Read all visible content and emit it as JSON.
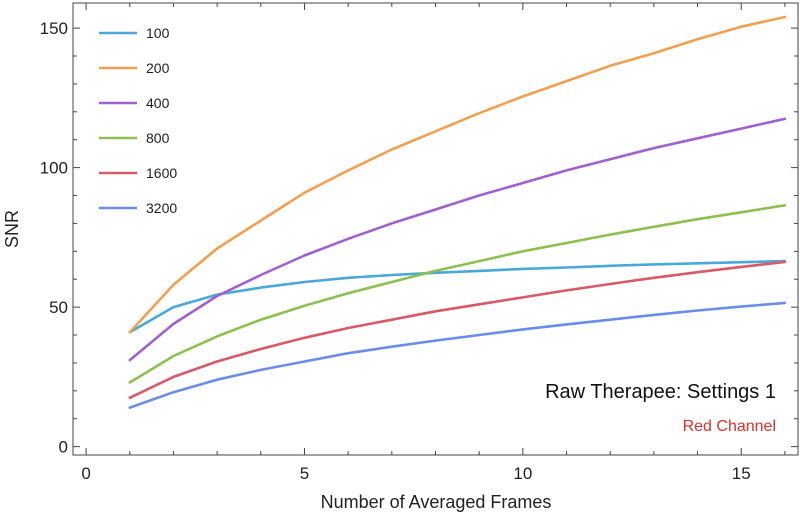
{
  "chart_data": {
    "type": "line",
    "xlabel": "Number of Averaged Frames",
    "ylabel": "SNR",
    "xlim": [
      -0.3,
      16.3
    ],
    "ylim": [
      -3,
      159
    ],
    "xticks": [
      0,
      5,
      10,
      15
    ],
    "yticks": [
      0,
      50,
      100,
      150
    ],
    "grid": false,
    "legend_position": "top-left",
    "annotations": [
      {
        "text": "Raw Therapee: Settings 1",
        "color": "#111111"
      },
      {
        "text": "Red Channel",
        "color": "#d9302c"
      }
    ],
    "x": [
      1,
      2,
      3,
      4,
      5,
      6,
      7,
      8,
      9,
      10,
      11,
      12,
      13,
      14,
      15,
      16
    ],
    "series": [
      {
        "name": "100",
        "color": "#4aa8d8",
        "values": [
          41,
          50,
          54.5,
          57,
          59,
          60.5,
          61.5,
          62.3,
          63,
          63.7,
          64.2,
          64.8,
          65.3,
          65.7,
          66.1,
          66.5
        ]
      },
      {
        "name": "200",
        "color": "#f0a050",
        "values": [
          41,
          58,
          71,
          81,
          91,
          99,
          106.5,
          113,
          119.5,
          125.5,
          131,
          136.5,
          141,
          146,
          150.5,
          154
        ]
      },
      {
        "name": "400",
        "color": "#a060d0",
        "values": [
          31,
          44,
          54,
          61.5,
          68.5,
          74.5,
          80,
          85,
          90,
          94.5,
          99,
          103,
          107,
          110.5,
          114,
          117.5
        ]
      },
      {
        "name": "800",
        "color": "#8dc050",
        "values": [
          23,
          32.5,
          39.5,
          45.5,
          50.5,
          55,
          59,
          63,
          66.5,
          70,
          73,
          76,
          78.8,
          81.5,
          84,
          86.5
        ]
      },
      {
        "name": "1600",
        "color": "#d85a68",
        "values": [
          17.5,
          25,
          30.5,
          35,
          39,
          42.5,
          45.5,
          48.5,
          51,
          53.5,
          56,
          58.3,
          60.5,
          62.5,
          64.4,
          66.2
        ]
      },
      {
        "name": "3200",
        "color": "#6a8de8",
        "values": [
          14,
          19.5,
          24,
          27.5,
          30.5,
          33.5,
          35.8,
          38,
          40,
          42,
          43.8,
          45.5,
          47.2,
          48.8,
          50.2,
          51.5
        ]
      }
    ]
  }
}
